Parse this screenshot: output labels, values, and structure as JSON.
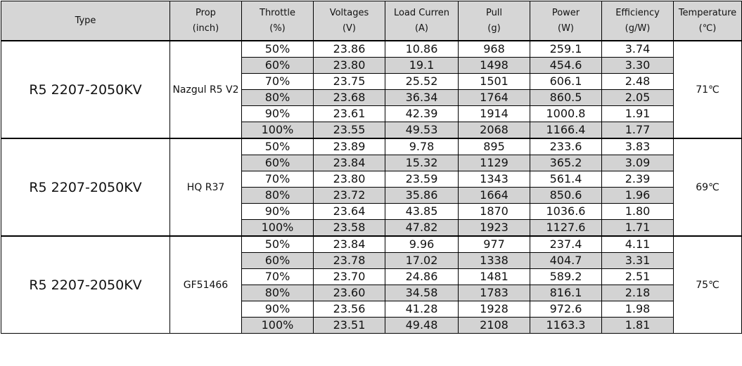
{
  "headers": [
    {
      "l1": "Type",
      "l2": ""
    },
    {
      "l1": "Prop",
      "l2": "(inch)"
    },
    {
      "l1": "Throttle",
      "l2": "(%)"
    },
    {
      "l1": "Voltages",
      "l2": "(V)"
    },
    {
      "l1": "Load Curren",
      "l2": "(A)"
    },
    {
      "l1": "Pull",
      "l2": "(g)"
    },
    {
      "l1": "Power",
      "l2": "(W)"
    },
    {
      "l1": "Efficiency",
      "l2": "(g/W)"
    },
    {
      "l1": "Temperature",
      "l2": "(℃)"
    }
  ],
  "groups": [
    {
      "type": "R5 2207-2050KV",
      "prop": "Nazgul R5 V2",
      "temp": "71℃",
      "rows": [
        [
          "50%",
          "23.86",
          "10.86",
          "968",
          "259.1",
          "3.74"
        ],
        [
          "60%",
          "23.80",
          "19.1",
          "1498",
          "454.6",
          "3.30"
        ],
        [
          "70%",
          "23.75",
          "25.52",
          "1501",
          "606.1",
          "2.48"
        ],
        [
          "80%",
          "23.68",
          "36.34",
          "1764",
          "860.5",
          "2.05"
        ],
        [
          "90%",
          "23.61",
          "42.39",
          "1914",
          "1000.8",
          "1.91"
        ],
        [
          "100%",
          "23.55",
          "49.53",
          "2068",
          "1166.4",
          "1.77"
        ]
      ]
    },
    {
      "type": "R5 2207-2050KV",
      "prop": "HQ R37",
      "temp": "69℃",
      "rows": [
        [
          "50%",
          "23.89",
          "9.78",
          "895",
          "233.6",
          "3.83"
        ],
        [
          "60%",
          "23.84",
          "15.32",
          "1129",
          "365.2",
          "3.09"
        ],
        [
          "70%",
          "23.80",
          "23.59",
          "1343",
          "561.4",
          "2.39"
        ],
        [
          "80%",
          "23.72",
          "35.86",
          "1664",
          "850.6",
          "1.96"
        ],
        [
          "90%",
          "23.64",
          "43.85",
          "1870",
          "1036.6",
          "1.80"
        ],
        [
          "100%",
          "23.58",
          "47.82",
          "1923",
          "1127.6",
          "1.71"
        ]
      ]
    },
    {
      "type": "R5 2207-2050KV",
      "prop": "GF51466",
      "temp": "75℃",
      "rows": [
        [
          "50%",
          "23.84",
          "9.96",
          "977",
          "237.4",
          "4.11"
        ],
        [
          "60%",
          "23.78",
          "17.02",
          "1338",
          "404.7",
          "3.31"
        ],
        [
          "70%",
          "23.70",
          "24.86",
          "1481",
          "589.2",
          "2.51"
        ],
        [
          "80%",
          "23.60",
          "34.58",
          "1783",
          "816.1",
          "2.18"
        ],
        [
          "90%",
          "23.56",
          "41.28",
          "1928",
          "972.6",
          "1.98"
        ],
        [
          "100%",
          "23.51",
          "49.48",
          "2108",
          "1163.3",
          "1.81"
        ]
      ]
    }
  ],
  "colors": {
    "header_bg": "#d6d6d6",
    "shaded_row": "#d3d3d3"
  }
}
